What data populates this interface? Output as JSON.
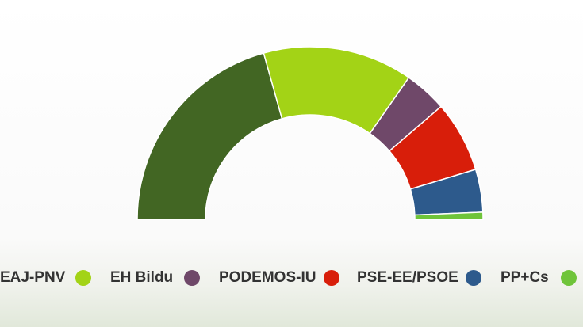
{
  "chart_data": {
    "type": "pie",
    "variant": "parliament-half-donut",
    "title": "",
    "total_seats": 75,
    "series": [
      {
        "name": "EAJ-PNV",
        "value": 31,
        "color": "#426623"
      },
      {
        "name": "EH Bildu",
        "value": 21,
        "color": "#a3d316"
      },
      {
        "name": "PODEMOS-IU",
        "value": 6,
        "color": "#6f4869"
      },
      {
        "name": "PSE-EE/PSOE",
        "value": 10,
        "color": "#d81e0a"
      },
      {
        "name": "PP+Cs",
        "value": 6,
        "color": "#2d5a8c"
      },
      {
        "name": "",
        "value": 1,
        "color": "#6fc43a"
      }
    ],
    "legend_placement": "bottom"
  }
}
